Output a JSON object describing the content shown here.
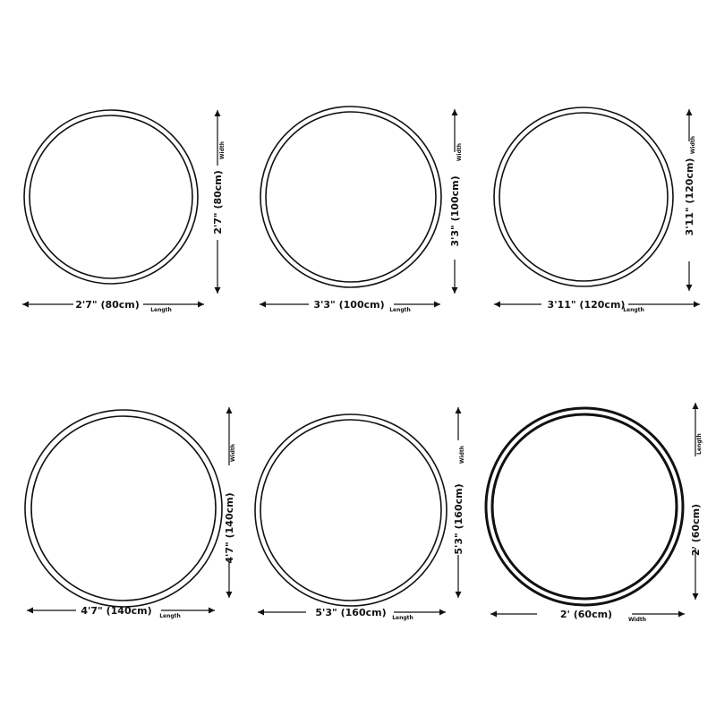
{
  "panels": [
    {
      "size_label": "2'7\" (80cm)",
      "vertical_caption": "Width",
      "horizontal_caption": "Length"
    },
    {
      "size_label": "3'3\" (100cm)",
      "vertical_caption": "Width",
      "horizontal_caption": "Length"
    },
    {
      "size_label": "3'11\" (120cm)",
      "vertical_caption": "Width",
      "horizontal_caption": "Length"
    },
    {
      "size_label": "4'7\" (140cm)",
      "vertical_caption": "Width",
      "horizontal_caption": "Length"
    },
    {
      "size_label": "5'3\" (160cm)",
      "vertical_caption": "Width",
      "horizontal_caption": "Length"
    },
    {
      "size_label": "2' (60cm)",
      "vertical_caption": "Length",
      "horizontal_caption": "Width"
    }
  ],
  "colors": {
    "line": "#111111",
    "background": "#ffffff"
  }
}
